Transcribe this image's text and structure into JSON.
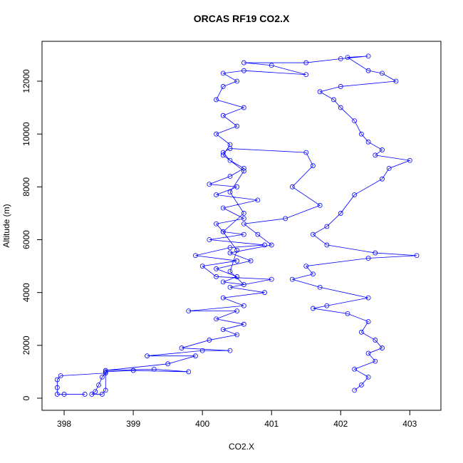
{
  "chart_data": {
    "type": "line",
    "title": "ORCAS RF19 CO2.X",
    "x_label": "CO2.X",
    "y_label": "Altitude (m)",
    "markers": "circle",
    "xlim": [
      397.68,
      403.45
    ],
    "ylim": [
      -458,
      13510
    ],
    "xticks": [
      398,
      399,
      400,
      401,
      402,
      403
    ],
    "yticks": [
      0,
      2000,
      4000,
      6000,
      8000,
      10000,
      12000
    ],
    "x": [
      398.3,
      398.0,
      397.9,
      397.9,
      397.9,
      397.95,
      398.6,
      398.55,
      398.5,
      398.45,
      398.4,
      398.55,
      398.6,
      398.6,
      399.0,
      399.8,
      399.3,
      398.6,
      399.5,
      399.9,
      399.2,
      400.0,
      400.4,
      399.7,
      400.1,
      400.5,
      400.3,
      400.6,
      400.2,
      400.5,
      399.8,
      400.6,
      400.3,
      400.9,
      400.4,
      401.0,
      400.2,
      400.0,
      400.5,
      399.9,
      400.4,
      400.9,
      400.1,
      400.6,
      400.3,
      400.2,
      400.6,
      400.3,
      400.8,
      400.2,
      400.5,
      400.1,
      400.4,
      400.6,
      400.4,
      400.3,
      400.4,
      401.5,
      401.6,
      401.3,
      401.7,
      401.2,
      400.6,
      400.8,
      401.0,
      400.4,
      400.7,
      400.2,
      400.5,
      400.3,
      400.6,
      400.4,
      400.5,
      400.3,
      400.6,
      400.4,
      400.6,
      400.3,
      400.4,
      400.2,
      400.5,
      400.3,
      400.6,
      400.2,
      400.3,
      400.5,
      400.3,
      400.6,
      401.5,
      401.0,
      400.6,
      401.5,
      402.0,
      402.4,
      402.1,
      402.4,
      402.6,
      402.8,
      402.0,
      401.7,
      401.9,
      402.0,
      402.2,
      402.3,
      402.4,
      402.6,
      402.5,
      403.0,
      402.7,
      402.6,
      402.2,
      402.0,
      401.8,
      401.6,
      401.8,
      402.5,
      403.1,
      402.4,
      401.5,
      401.6,
      401.3,
      401.7,
      402.4,
      401.8,
      401.6,
      402.1,
      402.4,
      402.3,
      402.5,
      402.6,
      402.4,
      402.5,
      402.2,
      402.4,
      402.3,
      402.2
    ],
    "series": [
      {
        "color": "#0000ff",
        "values": [
          150,
          150,
          150,
          400,
          700,
          850,
          950,
          800,
          500,
          250,
          150,
          150,
          300,
          1000,
          1050,
          1000,
          1100,
          1050,
          1300,
          1600,
          1600,
          1800,
          1800,
          1900,
          2200,
          2400,
          2600,
          2800,
          3000,
          3300,
          3300,
          3500,
          3800,
          4000,
          4200,
          4500,
          4600,
          5000,
          5200,
          5400,
          5700,
          5800,
          6000,
          6200,
          6300,
          6600,
          6800,
          7200,
          7500,
          7700,
          8000,
          8100,
          8400,
          8700,
          9000,
          9300,
          9450,
          9300,
          8800,
          8000,
          7300,
          6800,
          6600,
          6200,
          5800,
          5500,
          5200,
          4900,
          4600,
          4400,
          4300,
          4800,
          5600,
          6300,
          7000,
          7800,
          8600,
          9200,
          9600,
          10000,
          10300,
          10700,
          11000,
          11300,
          11800,
          12000,
          12300,
          12400,
          12250,
          12600,
          12700,
          12700,
          12850,
          12950,
          12900,
          12400,
          12300,
          12000,
          11800,
          11600,
          11300,
          11000,
          10500,
          10000,
          9700,
          9400,
          9200,
          9000,
          8700,
          8300,
          7700,
          7000,
          6500,
          6200,
          5800,
          5500,
          5400,
          5300,
          5000,
          4700,
          4500,
          4200,
          3800,
          3500,
          3400,
          3200,
          2900,
          2500,
          2200,
          1900,
          1700,
          1400,
          1100,
          800,
          500,
          300
        ]
      }
    ]
  }
}
